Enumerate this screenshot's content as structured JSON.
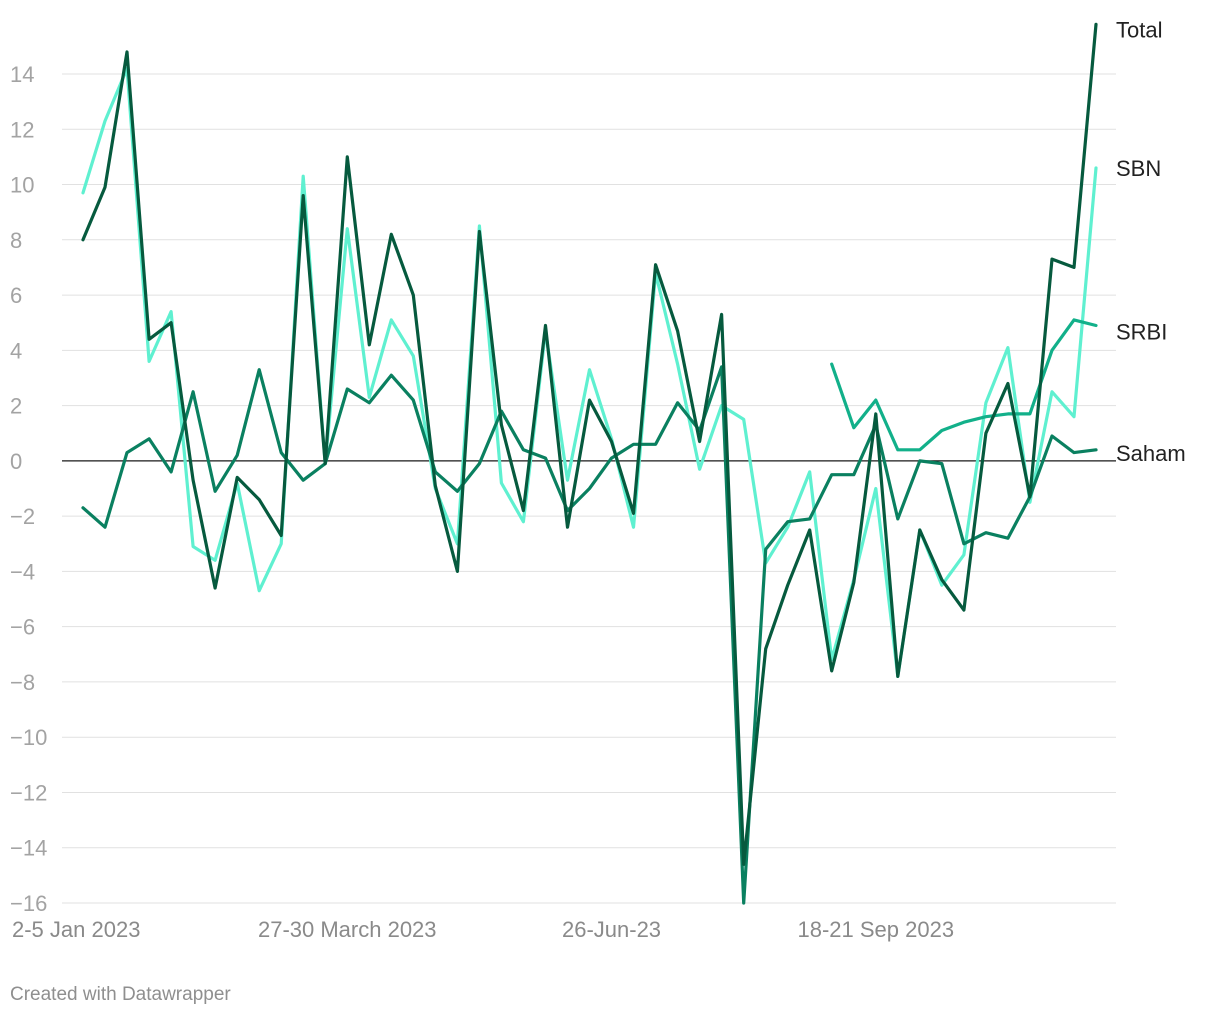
{
  "chart_data": {
    "type": "line",
    "title": "",
    "xlabel": "",
    "ylabel": "",
    "ylim": [
      -16,
      15.9
    ],
    "yticks": [
      14,
      12,
      10,
      8,
      6,
      4,
      2,
      0,
      -2,
      -4,
      -6,
      -8,
      -10,
      -12,
      -14,
      -16
    ],
    "ytick_labels": [
      "14",
      "12",
      "10",
      "8",
      "6",
      "4",
      "2",
      "0",
      "−2",
      "−4",
      "−6",
      "−8",
      "−10",
      "−12",
      "−14",
      "−16"
    ],
    "x_tick_labels": [
      {
        "index": 0,
        "label": "2-5 Jan 2023"
      },
      {
        "index": 12,
        "label": "27-30 March 2023"
      },
      {
        "index": 24,
        "label": "26-Jun-23"
      },
      {
        "index": 36,
        "label": "18-21 Sep 2023"
      }
    ],
    "x_count": 47,
    "grid": true,
    "legend": "direct labels at line ends",
    "series": [
      {
        "name": "SBN",
        "color": "#5ff0d0",
        "values": [
          9.7,
          12.3,
          14.2,
          3.6,
          5.4,
          -3.1,
          -3.6,
          -0.8,
          -4.7,
          -3.0,
          10.3,
          -0.1,
          8.4,
          2.3,
          5.1,
          3.8,
          -1.0,
          -3.0,
          8.5,
          -0.8,
          -2.2,
          4.7,
          -0.7,
          3.3,
          0.8,
          -2.4,
          6.8,
          3.5,
          -0.3,
          2.0,
          1.5,
          -3.7,
          -2.4,
          -0.4,
          -7.2,
          -4.3,
          -1.0,
          -7.8,
          -2.5,
          -4.5,
          -3.4,
          2.1,
          4.1,
          -1.5,
          2.5,
          1.6,
          10.6
        ]
      },
      {
        "name": "SRBI",
        "color": "#12b08a",
        "values": [
          null,
          null,
          null,
          null,
          null,
          null,
          null,
          null,
          null,
          null,
          null,
          null,
          null,
          null,
          null,
          null,
          null,
          null,
          null,
          null,
          null,
          null,
          null,
          null,
          null,
          null,
          null,
          null,
          null,
          null,
          null,
          null,
          null,
          null,
          3.5,
          1.2,
          2.2,
          0.4,
          0.4,
          1.1,
          1.4,
          1.6,
          1.7,
          1.7,
          4.0,
          5.1,
          4.9
        ]
      },
      {
        "name": "Saham",
        "color": "#0a8060",
        "values": [
          -1.7,
          -2.4,
          0.3,
          0.8,
          -0.4,
          2.5,
          -1.1,
          0.2,
          3.3,
          0.3,
          -0.7,
          -0.1,
          2.6,
          2.1,
          3.1,
          2.2,
          -0.4,
          -1.1,
          -0.1,
          1.8,
          0.4,
          0.1,
          -1.8,
          -1.0,
          0.1,
          0.6,
          0.6,
          2.1,
          1.1,
          3.4,
          -16.0,
          -3.2,
          -2.2,
          -2.1,
          -0.5,
          -0.5,
          1.3,
          -2.1,
          0.0,
          -0.1,
          -3.0,
          -2.6,
          -2.8,
          -1.3,
          0.9,
          0.3,
          0.4
        ]
      },
      {
        "name": "Total",
        "color": "#065a3e",
        "values": [
          8.0,
          9.9,
          14.8,
          4.4,
          5.0,
          -0.7,
          -4.6,
          -0.6,
          -1.4,
          -2.7,
          9.6,
          -0.1,
          11.0,
          4.2,
          8.2,
          6.0,
          -0.9,
          -4.0,
          8.3,
          1.3,
          -1.8,
          4.9,
          -2.4,
          2.2,
          0.7,
          -1.9,
          7.1,
          4.7,
          0.7,
          5.3,
          -14.6,
          -6.8,
          -4.5,
          -2.5,
          -7.6,
          -4.4,
          1.7,
          -7.8,
          -2.5,
          -4.3,
          -5.4,
          1.0,
          2.8,
          -1.3,
          7.3,
          7.0,
          15.8
        ]
      }
    ]
  },
  "credit": "Created with Datawrapper"
}
